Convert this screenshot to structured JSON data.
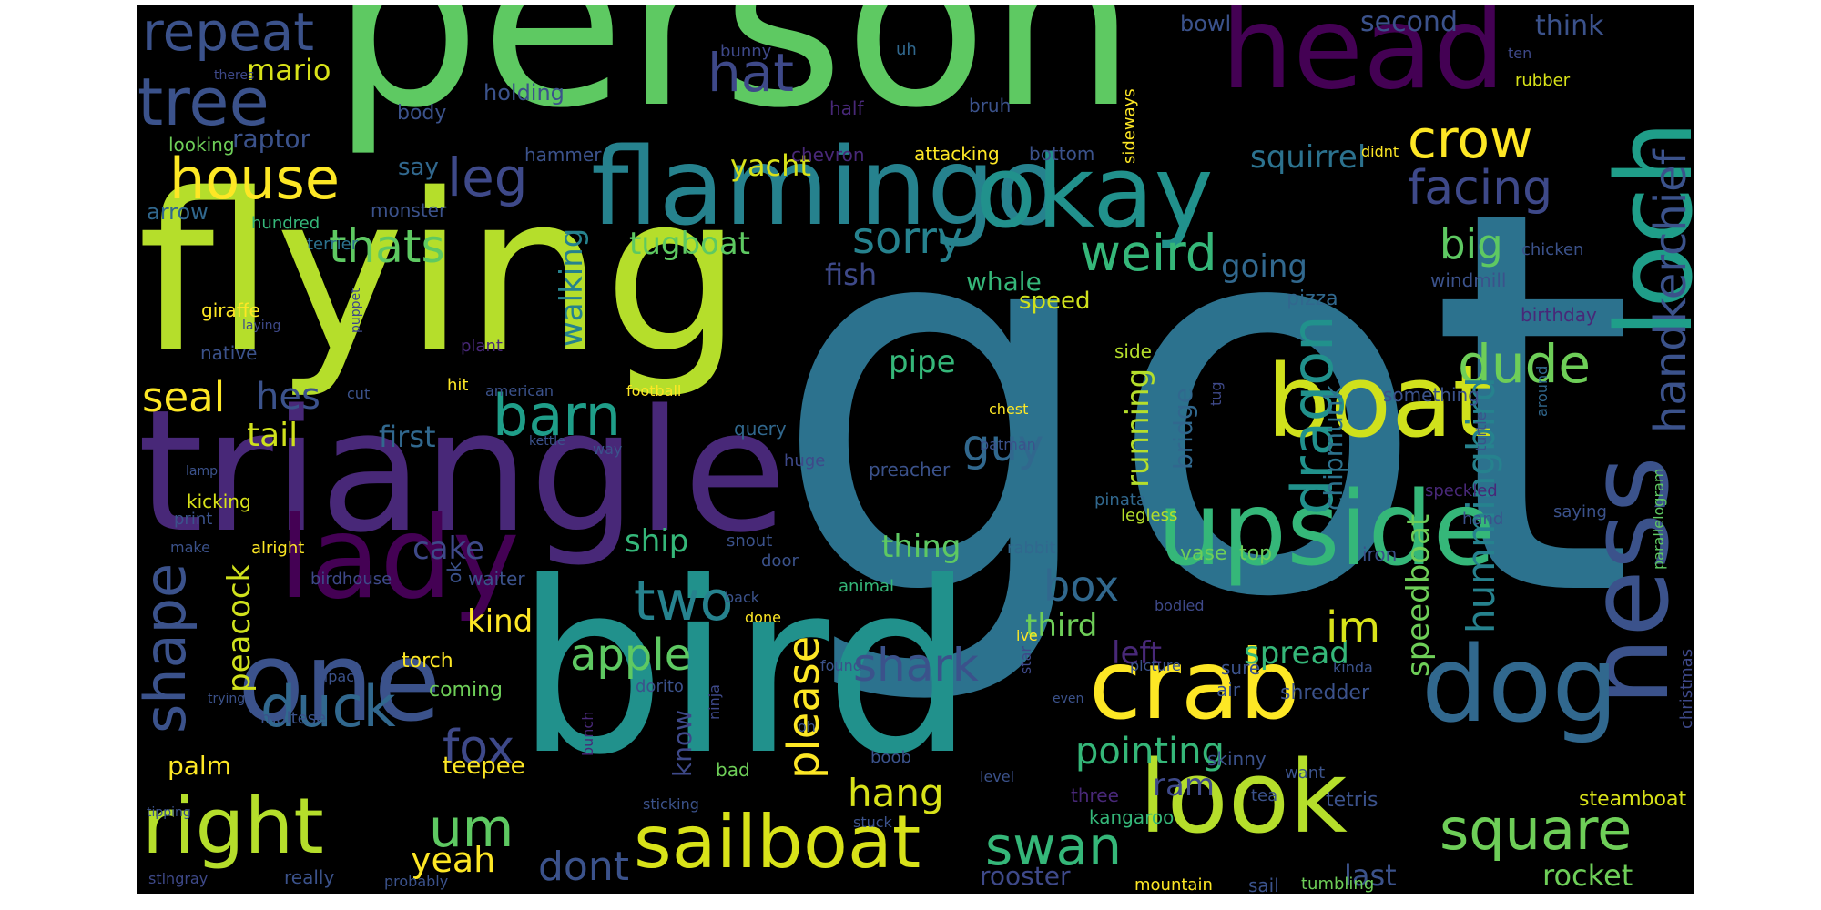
{
  "colors": {
    "background": "#000000",
    "palette": {
      "yellow": "#fde725",
      "lime": "#b5de2b",
      "green": "#5ec962",
      "teal": "#21918c",
      "teal2": "#1f9e89",
      "blue": "#3b528b",
      "blue2": "#31688e",
      "purple": "#482878",
      "purple2": "#440154"
    }
  },
  "words": [
    {
      "text": "got",
      "color": "#2c728e"
    },
    {
      "text": "person",
      "color": "#5ec962"
    },
    {
      "text": "flying",
      "color": "#b5de2b"
    },
    {
      "text": "bird",
      "color": "#21918c"
    },
    {
      "text": "triangle",
      "color": "#482878"
    },
    {
      "text": "head",
      "color": "#440154"
    },
    {
      "text": "flamingo",
      "color": "#26828e"
    },
    {
      "text": "okay",
      "color": "#21918c"
    },
    {
      "text": "loch",
      "color": "#1f9e89"
    },
    {
      "text": "lady",
      "color": "#440154"
    },
    {
      "text": "one",
      "color": "#3b528b"
    },
    {
      "text": "upside",
      "color": "#35b779"
    },
    {
      "text": "boat",
      "color": "#d0e11c"
    },
    {
      "text": "ness",
      "color": "#3b528b"
    },
    {
      "text": "dog",
      "color": "#31688e"
    },
    {
      "text": "crab",
      "color": "#fde725"
    },
    {
      "text": "look",
      "color": "#b5de2b"
    },
    {
      "text": "sailboat",
      "color": "#d8e219"
    },
    {
      "text": "right",
      "color": "#b5de2b"
    },
    {
      "text": "tree",
      "color": "#3b528b"
    },
    {
      "text": "house",
      "color": "#fde725"
    },
    {
      "text": "repeat",
      "color": "#3b528b"
    },
    {
      "text": "mario",
      "color": "#d8e219"
    },
    {
      "text": "hat",
      "color": "#3e4989"
    },
    {
      "text": "leg",
      "color": "#3e4989"
    },
    {
      "text": "thats",
      "color": "#5ec962"
    },
    {
      "text": "sorry",
      "color": "#26828e"
    },
    {
      "text": "weird",
      "color": "#35b779"
    },
    {
      "text": "barn",
      "color": "#1f9e89"
    },
    {
      "text": "dragon",
      "color": "#21918c"
    },
    {
      "text": "dude",
      "color": "#6ece58"
    },
    {
      "text": "handkerchief",
      "color": "#3b528b"
    },
    {
      "text": "crow",
      "color": "#fde725"
    },
    {
      "text": "facing",
      "color": "#3e4989"
    },
    {
      "text": "squirrel",
      "color": "#2c728e"
    },
    {
      "text": "big",
      "color": "#5ec962"
    },
    {
      "text": "guy",
      "color": "#31688e"
    },
    {
      "text": "hummingbird",
      "color": "#26828e"
    },
    {
      "text": "shape",
      "color": "#3b528b"
    },
    {
      "text": "duck",
      "color": "#31688e"
    },
    {
      "text": "two",
      "color": "#26828e"
    },
    {
      "text": "apple",
      "color": "#5ec962"
    },
    {
      "text": "fox",
      "color": "#3e4989"
    },
    {
      "text": "um",
      "color": "#5ec962"
    },
    {
      "text": "shark",
      "color": "#3b528b"
    },
    {
      "text": "swan",
      "color": "#35b779"
    },
    {
      "text": "square",
      "color": "#6ece58"
    },
    {
      "text": "seal",
      "color": "#fde725"
    },
    {
      "text": "hes",
      "color": "#3b528b"
    },
    {
      "text": "tail",
      "color": "#d0e11c"
    },
    {
      "text": "first",
      "color": "#31688e"
    },
    {
      "text": "cake",
      "color": "#3e4989"
    },
    {
      "text": "peacock",
      "color": "#d0e11c"
    },
    {
      "text": "ship",
      "color": "#35b779"
    },
    {
      "text": "box",
      "color": "#31688e"
    },
    {
      "text": "third",
      "color": "#6ece58"
    },
    {
      "text": "left",
      "color": "#482878"
    },
    {
      "text": "spread",
      "color": "#35b779"
    },
    {
      "text": "im",
      "color": "#d8e219"
    },
    {
      "text": "speedboat",
      "color": "#6ece58"
    },
    {
      "text": "pointing",
      "color": "#35b779"
    },
    {
      "text": "ram",
      "color": "#3e4989"
    },
    {
      "text": "hang",
      "color": "#d8e219"
    },
    {
      "text": "please",
      "color": "#fde725"
    },
    {
      "text": "know",
      "color": "#3e4989"
    },
    {
      "text": "kind",
      "color": "#fde725"
    },
    {
      "text": "walking",
      "color": "#26828e"
    },
    {
      "text": "tugboat",
      "color": "#5ec962"
    },
    {
      "text": "yacht",
      "color": "#d8e219"
    },
    {
      "text": "fish",
      "color": "#3e4989"
    },
    {
      "text": "whale",
      "color": "#35b779"
    },
    {
      "text": "speed",
      "color": "#d0e11c"
    },
    {
      "text": "pipe",
      "color": "#35b779"
    },
    {
      "text": "running",
      "color": "#b5de2b"
    },
    {
      "text": "bridge",
      "color": "#31688e"
    },
    {
      "text": "chipmunk",
      "color": "#2c728e"
    },
    {
      "text": "going",
      "color": "#31688e"
    },
    {
      "text": "thing",
      "color": "#5ec962"
    },
    {
      "text": "yeah",
      "color": "#fde725"
    },
    {
      "text": "dont",
      "color": "#3b528b"
    },
    {
      "text": "rooster",
      "color": "#3e4989"
    },
    {
      "text": "last",
      "color": "#3b528b"
    },
    {
      "text": "rocket",
      "color": "#6ece58"
    },
    {
      "text": "second",
      "color": "#3b528b"
    },
    {
      "text": "think",
      "color": "#3b528b"
    },
    {
      "text": "bowl",
      "color": "#3b528b"
    },
    {
      "text": "raptor",
      "color": "#3b528b"
    },
    {
      "text": "arrow",
      "color": "#31688e"
    },
    {
      "text": "say",
      "color": "#31688e"
    },
    {
      "text": "body",
      "color": "#3b528b"
    },
    {
      "text": "holding",
      "color": "#3b528b"
    },
    {
      "text": "bunny",
      "color": "#3e4989"
    },
    {
      "text": "uh",
      "color": "#31688e"
    },
    {
      "text": "bruh",
      "color": "#3b528b"
    },
    {
      "text": "half",
      "color": "#482878"
    },
    {
      "text": "ten",
      "color": "#3e4989"
    },
    {
      "text": "rubber",
      "color": "#d8e219"
    },
    {
      "text": "theres",
      "color": "#3e4989"
    },
    {
      "text": "looking",
      "color": "#6ece58"
    },
    {
      "text": "hammer",
      "color": "#3b528b"
    },
    {
      "text": "chevron",
      "color": "#482878"
    },
    {
      "text": "attacking",
      "color": "#fde725"
    },
    {
      "text": "bottom",
      "color": "#3b528b"
    },
    {
      "text": "sideways",
      "color": "#fde725"
    },
    {
      "text": "didnt",
      "color": "#fde725"
    },
    {
      "text": "monster",
      "color": "#3b528b"
    },
    {
      "text": "hundred",
      "color": "#35b779"
    },
    {
      "text": "terrier",
      "color": "#2c728e"
    },
    {
      "text": "chicken",
      "color": "#3b528b"
    },
    {
      "text": "windmill",
      "color": "#3b528b"
    },
    {
      "text": "giraffe",
      "color": "#fde725"
    },
    {
      "text": "laying",
      "color": "#3e4989"
    },
    {
      "text": "puppet",
      "color": "#3e4989"
    },
    {
      "text": "native",
      "color": "#3b528b"
    },
    {
      "text": "pizza",
      "color": "#31688e"
    },
    {
      "text": "birthday",
      "color": "#482878"
    },
    {
      "text": "plant",
      "color": "#482878"
    },
    {
      "text": "side",
      "color": "#b5de2b"
    },
    {
      "text": "cut",
      "color": "#3b528b"
    },
    {
      "text": "hit",
      "color": "#fde725"
    },
    {
      "text": "american",
      "color": "#3b528b"
    },
    {
      "text": "football",
      "color": "#fde725"
    },
    {
      "text": "chest",
      "color": "#fde725"
    },
    {
      "text": "tug",
      "color": "#3e4989"
    },
    {
      "text": "something",
      "color": "#3b528b"
    },
    {
      "text": "around",
      "color": "#31688e"
    },
    {
      "text": "query",
      "color": "#31688e"
    },
    {
      "text": "batman",
      "color": "#3b528b"
    },
    {
      "text": "way",
      "color": "#3b528b"
    },
    {
      "text": "kettle",
      "color": "#3b528b"
    },
    {
      "text": "huge",
      "color": "#3e4989"
    },
    {
      "text": "preacher",
      "color": "#3b528b"
    },
    {
      "text": "turtle",
      "color": "#3b528b"
    },
    {
      "text": "lamp",
      "color": "#3b528b"
    },
    {
      "text": "parallelogram",
      "color": "#5ec962"
    },
    {
      "text": "kicking",
      "color": "#d8e219"
    },
    {
      "text": "print",
      "color": "#3b528b"
    },
    {
      "text": "pinata",
      "color": "#31688e"
    },
    {
      "text": "legless",
      "color": "#b5de2b"
    },
    {
      "text": "hand",
      "color": "#3b528b"
    },
    {
      "text": "speckled",
      "color": "#482878"
    },
    {
      "text": "saying",
      "color": "#3b528b"
    },
    {
      "text": "make",
      "color": "#3b528b"
    },
    {
      "text": "alright",
      "color": "#fde725"
    },
    {
      "text": "ok",
      "color": "#3b528b"
    },
    {
      "text": "snout",
      "color": "#3b528b"
    },
    {
      "text": "door",
      "color": "#3b528b"
    },
    {
      "text": "rabbit",
      "color": "#31688e"
    },
    {
      "text": "vase",
      "color": "#6ece58"
    },
    {
      "text": "top",
      "color": "#6ece58"
    },
    {
      "text": "iron",
      "color": "#3b528b"
    },
    {
      "text": "birdhouse",
      "color": "#3e4989"
    },
    {
      "text": "waiter",
      "color": "#3b528b"
    },
    {
      "text": "animal",
      "color": "#35b779"
    },
    {
      "text": "back",
      "color": "#3b528b"
    },
    {
      "text": "done",
      "color": "#fde725"
    },
    {
      "text": "star",
      "color": "#3e4989"
    },
    {
      "text": "ive",
      "color": "#fde725"
    },
    {
      "text": "bodied",
      "color": "#3e4989"
    },
    {
      "text": "christmas",
      "color": "#3e4989"
    },
    {
      "text": "torch",
      "color": "#fde725"
    },
    {
      "text": "alpaca",
      "color": "#3b528b"
    },
    {
      "text": "coming",
      "color": "#6ece58"
    },
    {
      "text": "dorito",
      "color": "#3b528b"
    },
    {
      "text": "ninja",
      "color": "#3e4989"
    },
    {
      "text": "found",
      "color": "#3b528b"
    },
    {
      "text": "picture",
      "color": "#3b528b"
    },
    {
      "text": "sure",
      "color": "#3b528b"
    },
    {
      "text": "kinda",
      "color": "#3b528b"
    },
    {
      "text": "air",
      "color": "#3b528b"
    },
    {
      "text": "shredder",
      "color": "#3b528b"
    },
    {
      "text": "trying",
      "color": "#3b528b"
    },
    {
      "text": "maltese",
      "color": "#3b528b"
    },
    {
      "text": "even",
      "color": "#3b528b"
    },
    {
      "text": "palm",
      "color": "#fde725"
    },
    {
      "text": "teepee",
      "color": "#fde725"
    },
    {
      "text": "bunch",
      "color": "#482878"
    },
    {
      "text": "oh",
      "color": "#3b528b"
    },
    {
      "text": "boob",
      "color": "#3b528b"
    },
    {
      "text": "skinny",
      "color": "#3b528b"
    },
    {
      "text": "want",
      "color": "#3b528b"
    },
    {
      "text": "bad",
      "color": "#6ece58"
    },
    {
      "text": "level",
      "color": "#3b528b"
    },
    {
      "text": "three",
      "color": "#482878"
    },
    {
      "text": "tea",
      "color": "#3b528b"
    },
    {
      "text": "tetris",
      "color": "#3b528b"
    },
    {
      "text": "steamboat",
      "color": "#d8e219"
    },
    {
      "text": "tipping",
      "color": "#3b528b"
    },
    {
      "text": "sticking",
      "color": "#3b528b"
    },
    {
      "text": "kangaroo",
      "color": "#35b779"
    },
    {
      "text": "stuck",
      "color": "#3b528b"
    },
    {
      "text": "stingray",
      "color": "#3e4989"
    },
    {
      "text": "really",
      "color": "#3b528b"
    },
    {
      "text": "probably",
      "color": "#3b528b"
    },
    {
      "text": "mountain",
      "color": "#fde725"
    },
    {
      "text": "sail",
      "color": "#3b528b"
    },
    {
      "text": "tumbling",
      "color": "#6ece58"
    }
  ]
}
